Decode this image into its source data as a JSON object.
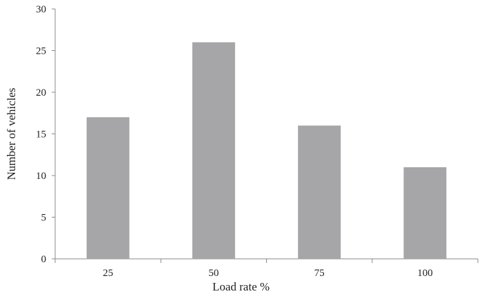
{
  "chart_data": {
    "type": "bar",
    "categories": [
      "25",
      "50",
      "75",
      "100"
    ],
    "values": [
      17,
      26,
      16,
      11
    ],
    "title": "",
    "xlabel": "Load rate %",
    "ylabel": "Number of vehicles",
    "ylim": [
      0,
      30
    ],
    "yticks": [
      "0",
      "5",
      "10",
      "15",
      "20",
      "25",
      "30"
    ],
    "grid": false,
    "legend": "none",
    "bar_color": "#a6a6a8",
    "axis_color": "#888888"
  }
}
